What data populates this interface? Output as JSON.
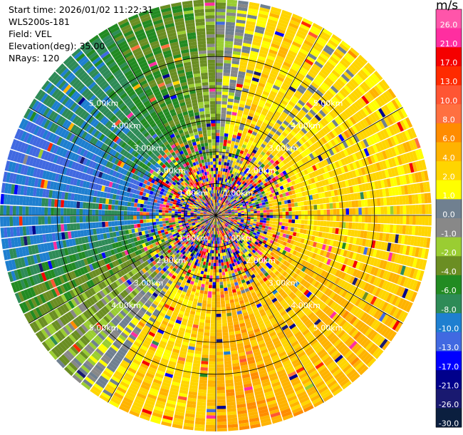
{
  "info": {
    "start_time": "Start time: 2026/01/02 11:22:31",
    "instrument": "WLS200s-181",
    "field": "Field: VEL",
    "elevation": "Elevation(deg): 35.00",
    "nrays": "NRays: 120"
  },
  "colorbar": {
    "units": "m/s",
    "ticks": [
      "26.0",
      "21.0",
      "17.0",
      "13.0",
      "10.0",
      "8.0",
      "6.0",
      "4.0",
      "2.0",
      "1.0",
      "0.0",
      "-1.0",
      "-2.0",
      "-4.0",
      "-6.0",
      "-8.0",
      "-10.0",
      "-13.0",
      "-17.0",
      "-21.0",
      "-26.0",
      "-30.0"
    ],
    "colors": [
      "#ff55aa",
      "#ff2ea0",
      "#f50000",
      "#ff2a00",
      "#ff5533",
      "#ff7040",
      "#ff8c00",
      "#ffb300",
      "#ffd500",
      "#ffff00",
      "#708090",
      "#888888",
      "#9acd32",
      "#6b8e23",
      "#228b22",
      "#2e8b57",
      "#1e7fd0",
      "#4169e1",
      "#0000ff",
      "#00008b",
      "#191970",
      "#0b1f3f"
    ]
  },
  "chart_data": {
    "type": "ppi",
    "field": "VEL",
    "units": "m/s",
    "nrays": 120,
    "elevation_deg": 35.0,
    "range_rings_km": [
      1.0,
      2.0,
      3.0,
      4.0,
      5.0
    ],
    "ring_labels": [
      "1.00km",
      "2.00km",
      "3.00km",
      "4.00km",
      "5.00km"
    ],
    "max_range_km": 6.8,
    "gate_spacing_km": 0.1,
    "clutter_range_km": 2.6,
    "sectors": [
      {
        "az": [
          0,
          40
        ],
        "value": 4.0
      },
      {
        "az": [
          40,
          70
        ],
        "value": 3.0
      },
      {
        "az": [
          70,
          110
        ],
        "value": 3.5
      },
      {
        "az": [
          110,
          150
        ],
        "value": 5.0
      },
      {
        "az": [
          150,
          190
        ],
        "value": 6.5
      },
      {
        "az": [
          190,
          220
        ],
        "value": 4.0
      },
      {
        "az": [
          220,
          250
        ],
        "value": -2.0
      },
      {
        "az": [
          250,
          275
        ],
        "value": -10.0
      },
      {
        "az": [
          275,
          300
        ],
        "value": -13.0
      },
      {
        "az": [
          300,
          330
        ],
        "value": -8.0
      },
      {
        "az": [
          330,
          360
        ],
        "value": -4.0
      }
    ]
  }
}
